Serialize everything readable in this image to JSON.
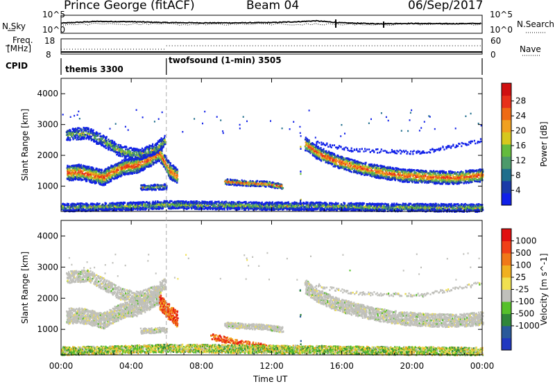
{
  "header": {
    "station": "Prince George (fitACF)",
    "beam": "Beam 04",
    "date": "06/Sep/2017"
  },
  "panels": {
    "noise": {
      "left_label": "N.Sky",
      "left_ticks": [
        "10^5",
        "10^0"
      ],
      "right_label": "N.Search",
      "right_ticks": [
        "10^5",
        "10^0"
      ]
    },
    "freq": {
      "left_label_1": "Freq.",
      "left_label_2": "[MHz]",
      "left_ticks": [
        "18",
        "8"
      ],
      "right_label": "Nave",
      "right_ticks": [
        "60",
        "0"
      ]
    },
    "cpid": {
      "label": "CPID",
      "segments": [
        "themis 3300",
        "twofsound (1-min) 3505"
      ]
    }
  },
  "chart_data": [
    {
      "type": "line",
      "title": "",
      "series": [
        {
          "name": "N.Sky",
          "x": [
            0,
            2,
            4,
            6,
            8,
            10,
            12,
            13.5,
            14.5,
            16,
            18,
            20,
            22,
            24
          ],
          "values": [
            3,
            3.6,
            3.5,
            3.2,
            3.1,
            3.1,
            3.2,
            3.5,
            3.8,
            3.1,
            2.8,
            2.9,
            2.8,
            2.9
          ]
        }
      ],
      "ylim": [
        0,
        5
      ],
      "yscale": "log"
    },
    {
      "type": "line",
      "title": "",
      "series": [
        {
          "name": "Freq.",
          "x": [
            0,
            6,
            24
          ],
          "values": [
            10.3,
            10.3,
            10.3
          ]
        },
        {
          "name": "Nave",
          "x": [
            0,
            6,
            6,
            24
          ],
          "values": [
            22,
            22,
            33,
            33
          ]
        }
      ],
      "ylim": [
        8,
        18
      ]
    },
    {
      "type": "heatmap",
      "title": "",
      "ylabel": "Slant Range [km]",
      "yticks": [
        "1000",
        "2000",
        "3000",
        "4000"
      ],
      "ylim": [
        180,
        4500
      ],
      "colorbar_label": "Power [dB]",
      "colorbar_ticks": [
        "4",
        "8",
        "12",
        "16",
        "20",
        "24",
        "28"
      ],
      "colorbar_colors": [
        "#1020e8",
        "#1a3aa8",
        "#1f6e8c",
        "#4c9a6a",
        "#64bb3e",
        "#d6c81e",
        "#f0a020",
        "#ee6a14",
        "#e8301a",
        "#d01010"
      ],
      "colorbar_range": [
        0,
        30
      ],
      "features": [
        {
          "name": "main band",
          "x": [
            0.3,
            1,
            2,
            3,
            4,
            5,
            6
          ],
          "y": [
            1400,
            1450,
            1300,
            1550,
            1750,
            2100,
            1400
          ]
        },
        {
          "name": "upper band",
          "x": [
            1,
            2,
            3,
            4,
            5,
            6
          ],
          "y": [
            2650,
            2700,
            2300,
            2000,
            2150,
            2400
          ]
        },
        {
          "name": "mid track",
          "x": [
            9.5,
            11,
            12.5
          ],
          "y": [
            1150,
            1100,
            1050
          ]
        },
        {
          "name": "recovery band",
          "x": [
            14,
            16,
            18,
            20,
            22,
            24
          ],
          "y": [
            2300,
            1800,
            1500,
            1350,
            1300,
            1350
          ]
        },
        {
          "name": "sparse top",
          "x": [
            20.5,
            22,
            24
          ],
          "y": [
            2200,
            2350,
            2500
          ]
        },
        {
          "name": "near range",
          "x": [
            0,
            6,
            12,
            18,
            24
          ],
          "y": [
            350,
            400,
            380,
            360,
            320
          ]
        }
      ]
    },
    {
      "type": "heatmap",
      "title": "",
      "ylabel": "Slant Range [km]",
      "yticks": [
        "1000",
        "2000",
        "3000",
        "4000"
      ],
      "ylim": [
        180,
        4500
      ],
      "xlabel": "Time UT",
      "xticks": [
        "00:00",
        "04:00",
        "08:00",
        "12:00",
        "16:00",
        "20:00",
        "00:00"
      ],
      "xlim": [
        0,
        24
      ],
      "colorbar_label": "Velocity [m s^-1]",
      "colorbar_ticks": [
        "1000",
        "500",
        "100",
        "25",
        "-25",
        "-100",
        "-500",
        "-1000"
      ],
      "colorbar_colors": [
        "#2038c0",
        "#2a5a9a",
        "#30863a",
        "#56c02a",
        "#c0c0bb",
        "#f0e050",
        "#f0b020",
        "#f07818",
        "#f04018",
        "#e01010"
      ],
      "colorbar_range": [
        -1200,
        1200
      ]
    }
  ]
}
